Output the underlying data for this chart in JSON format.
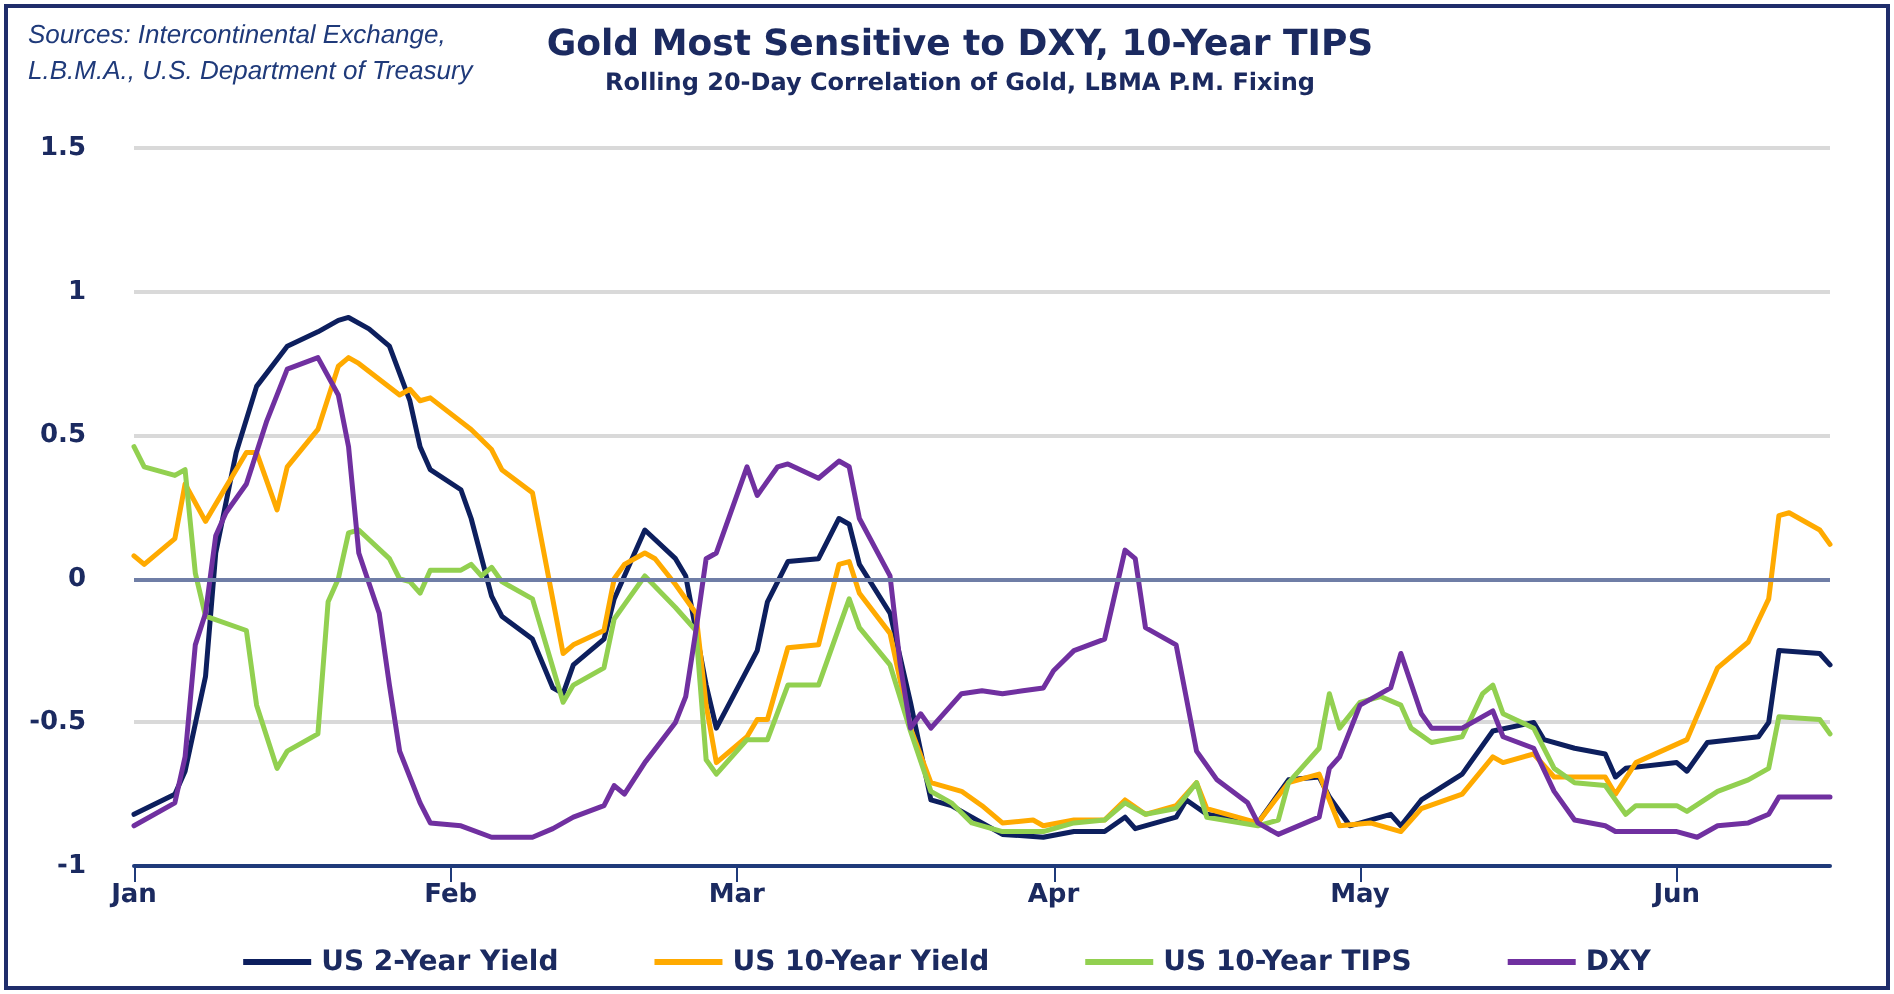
{
  "chart_data": {
    "type": "line",
    "title": "Gold Most Sensitive to DXY, 10-Year TIPS",
    "subtitle": "Rolling 20-Day Correlation of Gold, LBMA P.M. Fixing",
    "annotations": [
      "Sources: Intercontinental Exchange,\nL.B.M.A., U.S. Department of Treasury"
    ],
    "xlim": [
      "--01-01",
      "--06-16"
    ],
    "xticks": [
      {
        "value": "--01-01",
        "label": "Jan"
      },
      {
        "value": "--02-01",
        "label": "Feb"
      },
      {
        "value": "--03-01",
        "label": "Mar"
      },
      {
        "value": "--04-01",
        "label": "Apr"
      },
      {
        "value": "--05-01",
        "label": "May"
      },
      {
        "value": "--06-01",
        "label": "Jun"
      }
    ],
    "ylim": [
      -1,
      1.5
    ],
    "yticks": [
      -1,
      -0.5,
      0,
      0.5,
      1,
      1.5
    ],
    "grid": "y",
    "legend": "bottom",
    "marker": "none",
    "line_style": "solid",
    "ref_lines": [
      {
        "axis": "y",
        "value": 0,
        "color": "#6f7ea6"
      }
    ],
    "series": [
      {
        "name": "US 2-Year Yield",
        "color": "#0d1f5e",
        "x": [
          "--01-01",
          "--01-05",
          "--01-06",
          "--01-08",
          "--01-09",
          "--01-11",
          "--01-13",
          "--01-16",
          "--01-19",
          "--01-21",
          "--01-22",
          "--01-24",
          "--01-26",
          "--01-28",
          "--01-29",
          "--01-30",
          "--02-02",
          "--02-03",
          "--02-05",
          "--02-06",
          "--02-09",
          "--02-11",
          "--02-12",
          "--02-13",
          "--02-16",
          "--02-17",
          "--02-20",
          "--02-23",
          "--02-24",
          "--02-26",
          "--02-27",
          "--03-03",
          "--03-04",
          "--03-06",
          "--03-09",
          "--03-11",
          "--03-12",
          "--03-13",
          "--03-16",
          "--03-18",
          "--03-20",
          "--03-22",
          "--03-24",
          "--03-27",
          "--03-31",
          "--04-03",
          "--04-06",
          "--04-08",
          "--04-09",
          "--04-13",
          "--04-14",
          "--04-16",
          "--04-21",
          "--04-24",
          "--04-27",
          "--04-28",
          "--04-30",
          "--05-04",
          "--05-05",
          "--05-07",
          "--05-11",
          "--05-14",
          "--05-18",
          "--05-19",
          "--05-22",
          "--05-25",
          "--05-26",
          "--05-27",
          "--06-01",
          "--06-02",
          "--06-04",
          "--06-09",
          "--06-10",
          "--06-11",
          "--06-15",
          "--06-16"
        ],
        "values": [
          -0.82,
          -0.75,
          -0.67,
          -0.34,
          0.09,
          0.44,
          0.67,
          0.81,
          0.86,
          0.9,
          0.91,
          0.87,
          0.81,
          0.62,
          0.46,
          0.38,
          0.31,
          0.21,
          -0.06,
          -0.13,
          -0.21,
          -0.38,
          -0.4,
          -0.3,
          -0.21,
          -0.07,
          0.17,
          0.07,
          0.01,
          -0.37,
          -0.52,
          -0.25,
          -0.08,
          0.06,
          0.07,
          0.21,
          0.19,
          0.05,
          -0.12,
          -0.43,
          -0.77,
          -0.79,
          -0.83,
          -0.89,
          -0.9,
          -0.88,
          -0.88,
          -0.83,
          -0.87,
          -0.83,
          -0.77,
          -0.82,
          -0.85,
          -0.7,
          -0.69,
          -0.76,
          -0.86,
          -0.82,
          -0.86,
          -0.77,
          -0.68,
          -0.53,
          -0.5,
          -0.56,
          -0.59,
          -0.61,
          -0.69,
          -0.66,
          -0.64,
          -0.67,
          -0.57,
          -0.55,
          -0.5,
          -0.25,
          -0.26,
          -0.3
        ]
      },
      {
        "name": "US 10-Year Yield",
        "color": "#ffaa00",
        "x": [
          "--01-01",
          "--01-02",
          "--01-05",
          "--01-06",
          "--01-08",
          "--01-09",
          "--01-12",
          "--01-13",
          "--01-15",
          "--01-16",
          "--01-19",
          "--01-21",
          "--01-22",
          "--01-23",
          "--01-27",
          "--01-28",
          "--01-29",
          "--01-30",
          "--02-03",
          "--02-05",
          "--02-06",
          "--02-09",
          "--02-12",
          "--02-13",
          "--02-16",
          "--02-17",
          "--02-18",
          "--02-20",
          "--02-21",
          "--02-23",
          "--02-25",
          "--02-26",
          "--02-27",
          "--03-02",
          "--03-03",
          "--03-04",
          "--03-06",
          "--03-09",
          "--03-11",
          "--03-12",
          "--03-13",
          "--03-16",
          "--03-18",
          "--03-20",
          "--03-23",
          "--03-25",
          "--03-27",
          "--03-30",
          "--03-31",
          "--04-03",
          "--04-06",
          "--04-08",
          "--04-10",
          "--04-13",
          "--04-15",
          "--04-16",
          "--04-21",
          "--04-24",
          "--04-27",
          "--04-29",
          "--05-02",
          "--05-05",
          "--05-07",
          "--05-11",
          "--05-14",
          "--05-15",
          "--05-18",
          "--05-20",
          "--05-25",
          "--05-26",
          "--05-28",
          "--06-02",
          "--06-05",
          "--06-08",
          "--06-10",
          "--06-11",
          "--06-12",
          "--06-15",
          "--06-16"
        ],
        "values": [
          0.08,
          0.05,
          0.14,
          0.33,
          0.2,
          0.26,
          0.44,
          0.44,
          0.24,
          0.39,
          0.52,
          0.74,
          0.77,
          0.75,
          0.64,
          0.66,
          0.62,
          0.63,
          0.52,
          0.45,
          0.38,
          0.3,
          -0.26,
          -0.23,
          -0.18,
          0,
          0.05,
          0.09,
          0.07,
          -0.02,
          -0.12,
          -0.44,
          -0.64,
          -0.55,
          -0.49,
          -0.49,
          -0.24,
          -0.23,
          0.05,
          0.06,
          -0.05,
          -0.19,
          -0.52,
          -0.71,
          -0.74,
          -0.79,
          -0.85,
          -0.84,
          -0.86,
          -0.84,
          -0.84,
          -0.77,
          -0.82,
          -0.79,
          -0.71,
          -0.8,
          -0.85,
          -0.71,
          -0.68,
          -0.86,
          -0.85,
          -0.88,
          -0.8,
          -0.75,
          -0.62,
          -0.64,
          -0.61,
          -0.69,
          -0.69,
          -0.75,
          -0.64,
          -0.56,
          -0.31,
          -0.22,
          -0.07,
          0.22,
          0.23,
          0.17,
          0.12
        ]
      },
      {
        "name": "US 10-Year TIPS",
        "color": "#92d050",
        "x": [
          "--01-01",
          "--01-02",
          "--01-05",
          "--01-06",
          "--01-07",
          "--01-08",
          "--01-12",
          "--01-13",
          "--01-15",
          "--01-16",
          "--01-19",
          "--01-20",
          "--01-21",
          "--01-22",
          "--01-23",
          "--01-26",
          "--01-27",
          "--01-28",
          "--01-29",
          "--01-30",
          "--02-02",
          "--02-03",
          "--02-04",
          "--02-05",
          "--02-06",
          "--02-09",
          "--02-12",
          "--02-13",
          "--02-16",
          "--02-17",
          "--02-18",
          "--02-20",
          "--02-23",
          "--02-25",
          "--02-26",
          "--02-27",
          "--03-02",
          "--03-04",
          "--03-06",
          "--03-09",
          "--03-12",
          "--03-13",
          "--03-16",
          "--03-18",
          "--03-20",
          "--03-22",
          "--03-24",
          "--03-27",
          "--03-31",
          "--04-03",
          "--04-06",
          "--04-08",
          "--04-10",
          "--04-13",
          "--04-15",
          "--04-16",
          "--04-21",
          "--04-23",
          "--04-24",
          "--04-27",
          "--04-28",
          "--04-29",
          "--05-01",
          "--05-03",
          "--05-05",
          "--05-06",
          "--05-08",
          "--05-11",
          "--05-13",
          "--05-14",
          "--05-15",
          "--05-18",
          "--05-20",
          "--05-22",
          "--05-25",
          "--05-27",
          "--05-28",
          "--06-01",
          "--06-02",
          "--06-05",
          "--06-08",
          "--06-10",
          "--06-11",
          "--06-15",
          "--06-16"
        ],
        "values": [
          0.46,
          0.39,
          0.36,
          0.38,
          0.02,
          -0.13,
          -0.18,
          -0.44,
          -0.66,
          -0.6,
          -0.54,
          -0.08,
          0,
          0.16,
          0.17,
          0.07,
          0,
          -0.01,
          -0.05,
          0.03,
          0.03,
          0.05,
          0.01,
          0.04,
          -0.01,
          -0.07,
          -0.43,
          -0.37,
          -0.31,
          -0.14,
          -0.09,
          0.01,
          -0.1,
          -0.18,
          -0.63,
          -0.68,
          -0.56,
          -0.56,
          -0.37,
          -0.37,
          -0.07,
          -0.17,
          -0.3,
          -0.53,
          -0.74,
          -0.78,
          -0.85,
          -0.88,
          -0.88,
          -0.85,
          -0.84,
          -0.78,
          -0.82,
          -0.8,
          -0.71,
          -0.83,
          -0.86,
          -0.84,
          -0.71,
          -0.59,
          -0.4,
          -0.52,
          -0.43,
          -0.41,
          -0.44,
          -0.52,
          -0.57,
          -0.55,
          -0.4,
          -0.37,
          -0.47,
          -0.52,
          -0.66,
          -0.71,
          -0.72,
          -0.82,
          -0.79,
          -0.79,
          -0.81,
          -0.74,
          -0.7,
          -0.66,
          -0.48,
          -0.49,
          -0.54
        ]
      },
      {
        "name": "DXY",
        "color": "#7030a0",
        "x": [
          "--01-01",
          "--01-05",
          "--01-06",
          "--01-07",
          "--01-08",
          "--01-09",
          "--01-10",
          "--01-12",
          "--01-14",
          "--01-16",
          "--01-19",
          "--01-21",
          "--01-22",
          "--01-23",
          "--01-25",
          "--01-26",
          "--01-27",
          "--01-29",
          "--01-30",
          "--02-02",
          "--02-05",
          "--02-09",
          "--02-11",
          "--02-13",
          "--02-16",
          "--02-17",
          "--02-18",
          "--02-20",
          "--02-23",
          "--02-24",
          "--02-25",
          "--02-26",
          "--02-27",
          "--03-02",
          "--03-03",
          "--03-05",
          "--03-06",
          "--03-09",
          "--03-11",
          "--03-12",
          "--03-13",
          "--03-16",
          "--03-17",
          "--03-18",
          "--03-19",
          "--03-20",
          "--03-21",
          "--03-23",
          "--03-25",
          "--03-27",
          "--03-29",
          "--03-31",
          "--04-01",
          "--04-03",
          "--04-06",
          "--04-08",
          "--04-09",
          "--04-10",
          "--04-13",
          "--04-15",
          "--04-17",
          "--04-20",
          "--04-21",
          "--04-23",
          "--04-27",
          "--04-28",
          "--04-29",
          "--05-01",
          "--05-04",
          "--05-05",
          "--05-07",
          "--05-08",
          "--05-11",
          "--05-14",
          "--05-15",
          "--05-18",
          "--05-20",
          "--05-22",
          "--05-25",
          "--05-26",
          "--05-30",
          "--06-01",
          "--06-03",
          "--06-05",
          "--06-08",
          "--06-10",
          "--06-11",
          "--06-16"
        ],
        "values": [
          -0.86,
          -0.78,
          -0.62,
          -0.23,
          -0.12,
          0.15,
          0.23,
          0.33,
          0.55,
          0.73,
          0.77,
          0.64,
          0.46,
          0.09,
          -0.12,
          -0.37,
          -0.6,
          -0.78,
          -0.85,
          -0.86,
          -0.9,
          -0.9,
          -0.87,
          -0.83,
          -0.79,
          -0.72,
          -0.75,
          -0.64,
          -0.5,
          -0.41,
          -0.18,
          0.07,
          0.09,
          0.39,
          0.29,
          0.39,
          0.4,
          0.35,
          0.41,
          0.39,
          0.21,
          0.01,
          -0.3,
          -0.52,
          -0.47,
          -0.52,
          -0.48,
          -0.4,
          -0.39,
          -0.4,
          -0.39,
          -0.38,
          -0.32,
          -0.25,
          -0.21,
          0.1,
          0.07,
          -0.17,
          -0.23,
          -0.6,
          -0.7,
          -0.78,
          -0.85,
          -0.89,
          -0.83,
          -0.66,
          -0.62,
          -0.44,
          -0.38,
          -0.26,
          -0.47,
          -0.52,
          -0.52,
          -0.46,
          -0.55,
          -0.59,
          -0.74,
          -0.84,
          -0.86,
          -0.88,
          -0.88,
          -0.88,
          -0.9,
          -0.86,
          -0.85,
          -0.82,
          -0.76,
          -0.76
        ]
      }
    ]
  }
}
